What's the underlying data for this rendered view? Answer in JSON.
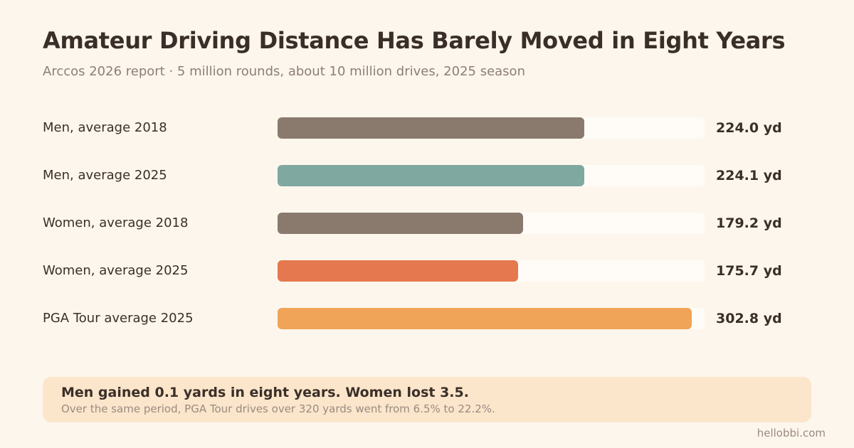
{
  "header": {
    "title": "Amateur Driving Distance Has Barely Moved in Eight Years",
    "subtitle": "Arccos 2026 report · 5 million rounds, about 10 million drives, 2025 season"
  },
  "chart_data": {
    "type": "bar",
    "orientation": "horizontal",
    "title": "Amateur Driving Distance Has Barely Moved in Eight Years",
    "categories": [
      "Men, average 2018",
      "Men, average 2025",
      "Women, average 2018",
      "Women, average 2025",
      "PGA Tour average 2025"
    ],
    "values": [
      224.0,
      224.1,
      179.2,
      175.7,
      302.8
    ],
    "value_labels": [
      "224.0 yd",
      "224.1 yd",
      "179.2 yd",
      "175.7 yd",
      "302.8 yd"
    ],
    "colors": [
      "#8a7a6e",
      "#7fa8a0",
      "#8a7a6e",
      "#e5784f",
      "#f0a458"
    ],
    "xlim": [
      0,
      312
    ],
    "grid": false,
    "legend": "none"
  },
  "callout": {
    "headline": "Men gained 0.1 yards in eight years. Women lost 3.5.",
    "detail": "Over the same period, PGA Tour drives over 320 yards went from 6.5% to 22.2%."
  },
  "footer": {
    "source": "hellobbi.com"
  }
}
